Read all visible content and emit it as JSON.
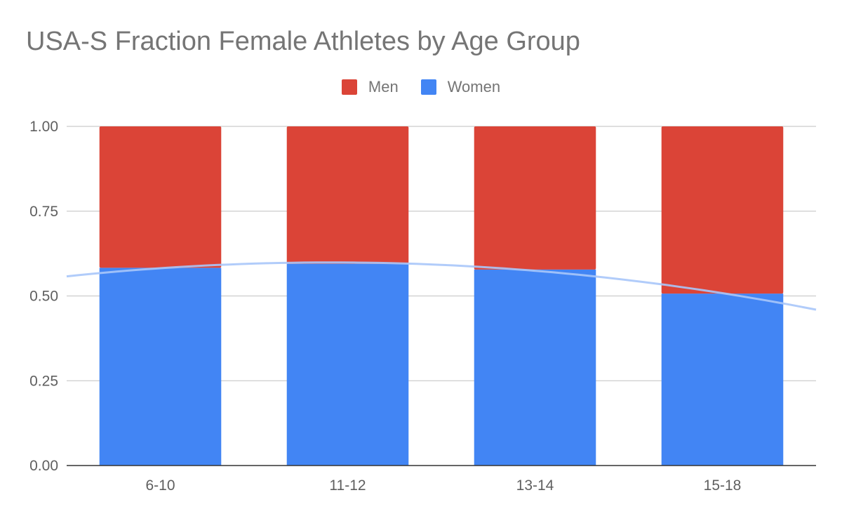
{
  "chart_data": {
    "type": "bar",
    "stacked": true,
    "title": "USA-S Fraction Female Athletes by Age Group",
    "xlabel": "",
    "ylabel": "",
    "categories": [
      "6-10",
      "11-12",
      "13-14",
      "15-18"
    ],
    "series": [
      {
        "name": "Women",
        "color": "#4285f4",
        "values": [
          0.583,
          0.595,
          0.578,
          0.507
        ]
      },
      {
        "name": "Men",
        "color": "#db4437",
        "values": [
          0.417,
          0.405,
          0.422,
          0.493
        ]
      }
    ],
    "legend_order": [
      "Men",
      "Women"
    ],
    "legend_position": "top",
    "ylim": [
      0,
      1
    ],
    "yticks": [
      "0.00",
      "0.25",
      "0.50",
      "0.75",
      "1.00"
    ],
    "ytick_values": [
      0,
      0.25,
      0.5,
      0.75,
      1
    ],
    "grid": true,
    "trendline": {
      "series": "Women",
      "type": "polynomial",
      "color": "#a8c7fa"
    }
  }
}
